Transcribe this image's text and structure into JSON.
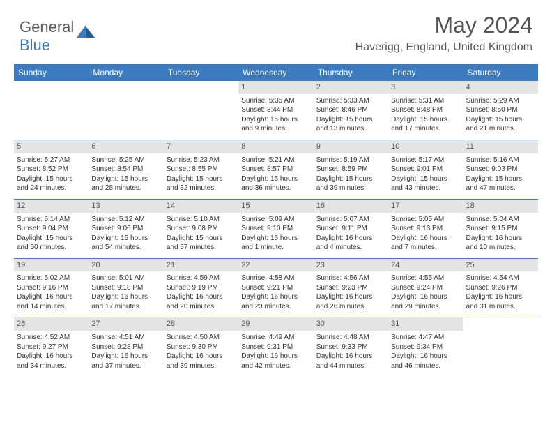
{
  "brand": {
    "part1": "General",
    "part2": "Blue"
  },
  "title": "May 2024",
  "location": "Haverigg, England, United Kingdom",
  "colors": {
    "header_bg": "#3b7bbf",
    "header_text": "#ffffff",
    "daynum_bg": "#e4e4e4",
    "border": "#3b7bbf",
    "text": "#333333",
    "title_text": "#555555"
  },
  "day_headers": [
    "Sunday",
    "Monday",
    "Tuesday",
    "Wednesday",
    "Thursday",
    "Friday",
    "Saturday"
  ],
  "weeks": [
    [
      null,
      null,
      null,
      {
        "n": "1",
        "sr": "5:35 AM",
        "ss": "8:44 PM",
        "dl": "15 hours and 9 minutes."
      },
      {
        "n": "2",
        "sr": "5:33 AM",
        "ss": "8:46 PM",
        "dl": "15 hours and 13 minutes."
      },
      {
        "n": "3",
        "sr": "5:31 AM",
        "ss": "8:48 PM",
        "dl": "15 hours and 17 minutes."
      },
      {
        "n": "4",
        "sr": "5:29 AM",
        "ss": "8:50 PM",
        "dl": "15 hours and 21 minutes."
      }
    ],
    [
      {
        "n": "5",
        "sr": "5:27 AM",
        "ss": "8:52 PM",
        "dl": "15 hours and 24 minutes."
      },
      {
        "n": "6",
        "sr": "5:25 AM",
        "ss": "8:54 PM",
        "dl": "15 hours and 28 minutes."
      },
      {
        "n": "7",
        "sr": "5:23 AM",
        "ss": "8:55 PM",
        "dl": "15 hours and 32 minutes."
      },
      {
        "n": "8",
        "sr": "5:21 AM",
        "ss": "8:57 PM",
        "dl": "15 hours and 36 minutes."
      },
      {
        "n": "9",
        "sr": "5:19 AM",
        "ss": "8:59 PM",
        "dl": "15 hours and 39 minutes."
      },
      {
        "n": "10",
        "sr": "5:17 AM",
        "ss": "9:01 PM",
        "dl": "15 hours and 43 minutes."
      },
      {
        "n": "11",
        "sr": "5:16 AM",
        "ss": "9:03 PM",
        "dl": "15 hours and 47 minutes."
      }
    ],
    [
      {
        "n": "12",
        "sr": "5:14 AM",
        "ss": "9:04 PM",
        "dl": "15 hours and 50 minutes."
      },
      {
        "n": "13",
        "sr": "5:12 AM",
        "ss": "9:06 PM",
        "dl": "15 hours and 54 minutes."
      },
      {
        "n": "14",
        "sr": "5:10 AM",
        "ss": "9:08 PM",
        "dl": "15 hours and 57 minutes."
      },
      {
        "n": "15",
        "sr": "5:09 AM",
        "ss": "9:10 PM",
        "dl": "16 hours and 1 minute."
      },
      {
        "n": "16",
        "sr": "5:07 AM",
        "ss": "9:11 PM",
        "dl": "16 hours and 4 minutes."
      },
      {
        "n": "17",
        "sr": "5:05 AM",
        "ss": "9:13 PM",
        "dl": "16 hours and 7 minutes."
      },
      {
        "n": "18",
        "sr": "5:04 AM",
        "ss": "9:15 PM",
        "dl": "16 hours and 10 minutes."
      }
    ],
    [
      {
        "n": "19",
        "sr": "5:02 AM",
        "ss": "9:16 PM",
        "dl": "16 hours and 14 minutes."
      },
      {
        "n": "20",
        "sr": "5:01 AM",
        "ss": "9:18 PM",
        "dl": "16 hours and 17 minutes."
      },
      {
        "n": "21",
        "sr": "4:59 AM",
        "ss": "9:19 PM",
        "dl": "16 hours and 20 minutes."
      },
      {
        "n": "22",
        "sr": "4:58 AM",
        "ss": "9:21 PM",
        "dl": "16 hours and 23 minutes."
      },
      {
        "n": "23",
        "sr": "4:56 AM",
        "ss": "9:23 PM",
        "dl": "16 hours and 26 minutes."
      },
      {
        "n": "24",
        "sr": "4:55 AM",
        "ss": "9:24 PM",
        "dl": "16 hours and 29 minutes."
      },
      {
        "n": "25",
        "sr": "4:54 AM",
        "ss": "9:26 PM",
        "dl": "16 hours and 31 minutes."
      }
    ],
    [
      {
        "n": "26",
        "sr": "4:52 AM",
        "ss": "9:27 PM",
        "dl": "16 hours and 34 minutes."
      },
      {
        "n": "27",
        "sr": "4:51 AM",
        "ss": "9:28 PM",
        "dl": "16 hours and 37 minutes."
      },
      {
        "n": "28",
        "sr": "4:50 AM",
        "ss": "9:30 PM",
        "dl": "16 hours and 39 minutes."
      },
      {
        "n": "29",
        "sr": "4:49 AM",
        "ss": "9:31 PM",
        "dl": "16 hours and 42 minutes."
      },
      {
        "n": "30",
        "sr": "4:48 AM",
        "ss": "9:33 PM",
        "dl": "16 hours and 44 minutes."
      },
      {
        "n": "31",
        "sr": "4:47 AM",
        "ss": "9:34 PM",
        "dl": "16 hours and 46 minutes."
      },
      null
    ]
  ],
  "labels": {
    "sunrise": "Sunrise:",
    "sunset": "Sunset:",
    "daylight": "Daylight:"
  }
}
